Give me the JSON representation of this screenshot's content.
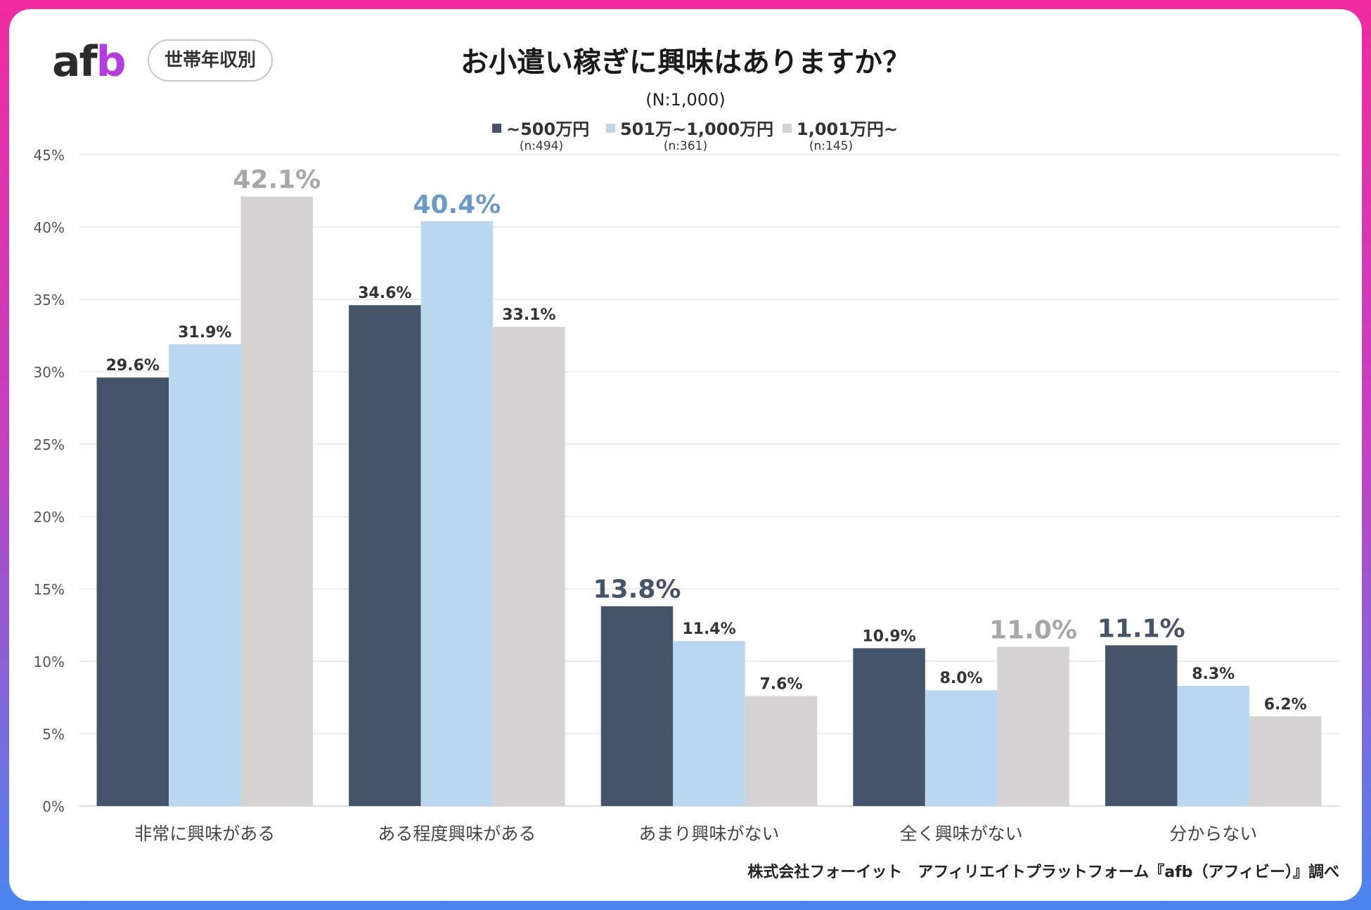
{
  "brand": {
    "logo_text": "afb"
  },
  "badge": "世帯年収別",
  "source_note": "株式会社フォーイット　アフィリエイトプラットフォーム『afb（アフィビー）』調べ",
  "colors": {
    "series1": "#455468",
    "series2": "#bad7ef",
    "series3": "#d6d2d3"
  },
  "chart_data": {
    "type": "bar",
    "title": "お小遣い稼ぎに興味はありますか？",
    "subtitle": "(N:1,000)",
    "categories": [
      "非常に興味がある",
      "ある程度興味がある",
      "あまり興味がない",
      "全く興味がない",
      "分からない"
    ],
    "series": [
      {
        "name": "~500万円",
        "n": "(n:494)",
        "values": [
          29.6,
          34.6,
          13.8,
          10.9,
          11.1
        ],
        "labels": [
          "29.6%",
          "34.6%",
          "13.8%",
          "10.9%",
          "11.1%"
        ],
        "highlight_color": "#455468"
      },
      {
        "name": "501万~1,000万円",
        "n": "(n:361)",
        "values": [
          31.9,
          40.4,
          11.4,
          8.0,
          8.3
        ],
        "labels": [
          "31.9%",
          "40.4%",
          "11.4%",
          "8.0%",
          "8.3%"
        ],
        "highlight_color": "#6b9ac9"
      },
      {
        "name": "1,001万円~",
        "n": "(n:145)",
        "values": [
          42.1,
          33.1,
          7.6,
          11.0,
          6.2
        ],
        "labels": [
          "42.1%",
          "33.1%",
          "7.6%",
          "11.0%",
          "6.2%"
        ],
        "highlight_color": "#a9a6a7"
      }
    ],
    "highlighted": [
      [
        0,
        2
      ],
      [
        1,
        1
      ],
      [
        2,
        0
      ],
      [
        3,
        2
      ],
      [
        4,
        0
      ]
    ],
    "yticks": [
      "0%",
      "5%",
      "10%",
      "15%",
      "20%",
      "25%",
      "30%",
      "35%",
      "40%",
      "45%"
    ],
    "ylim": [
      0,
      45
    ],
    "xlabel": "",
    "ylabel": "",
    "legend_position": "top",
    "grid": true
  }
}
